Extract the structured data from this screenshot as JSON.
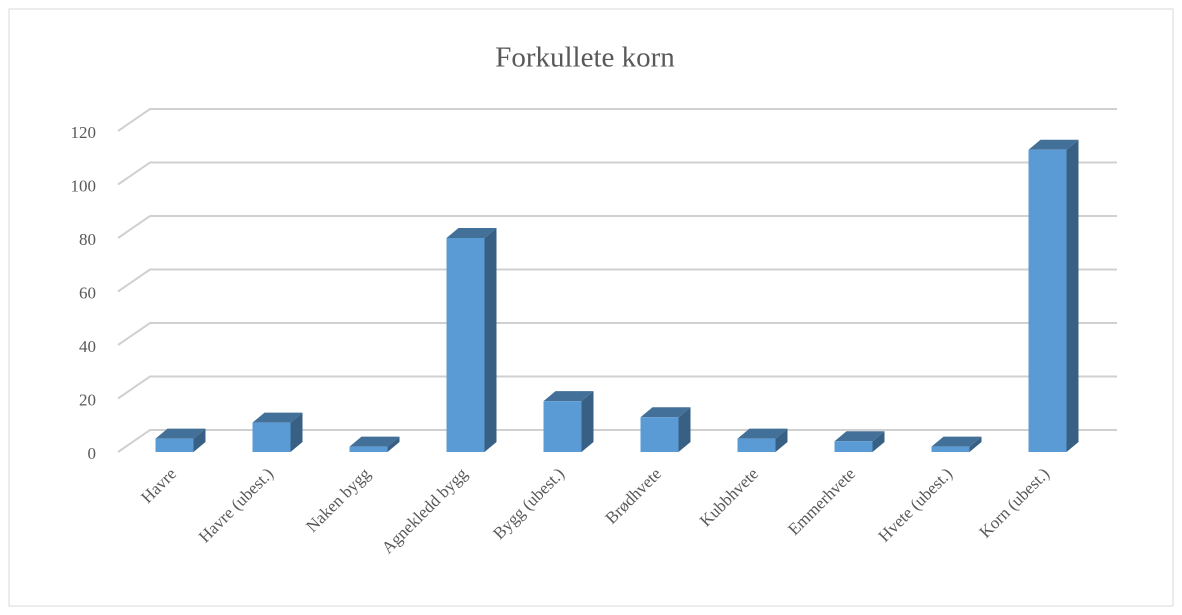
{
  "chart_data": {
    "type": "bar3d",
    "title": "Forkullete korn",
    "categories": [
      "Havre",
      "Havre (ubest.)",
      "Naken bygg",
      "Agnekledd bygg",
      "Bygg (ubest.)",
      "Brødhvete",
      "Kubbhvete",
      "Emmerhvete",
      "Hvete (ubest.)",
      "Korn (ubest.)"
    ],
    "values": [
      5,
      11,
      2,
      80,
      19,
      13,
      5,
      4,
      2,
      113
    ],
    "color": "#5b9bd5",
    "ylim": [
      0,
      120
    ],
    "yticks": [
      0,
      20,
      40,
      60,
      80,
      100,
      120
    ],
    "grid": true
  }
}
